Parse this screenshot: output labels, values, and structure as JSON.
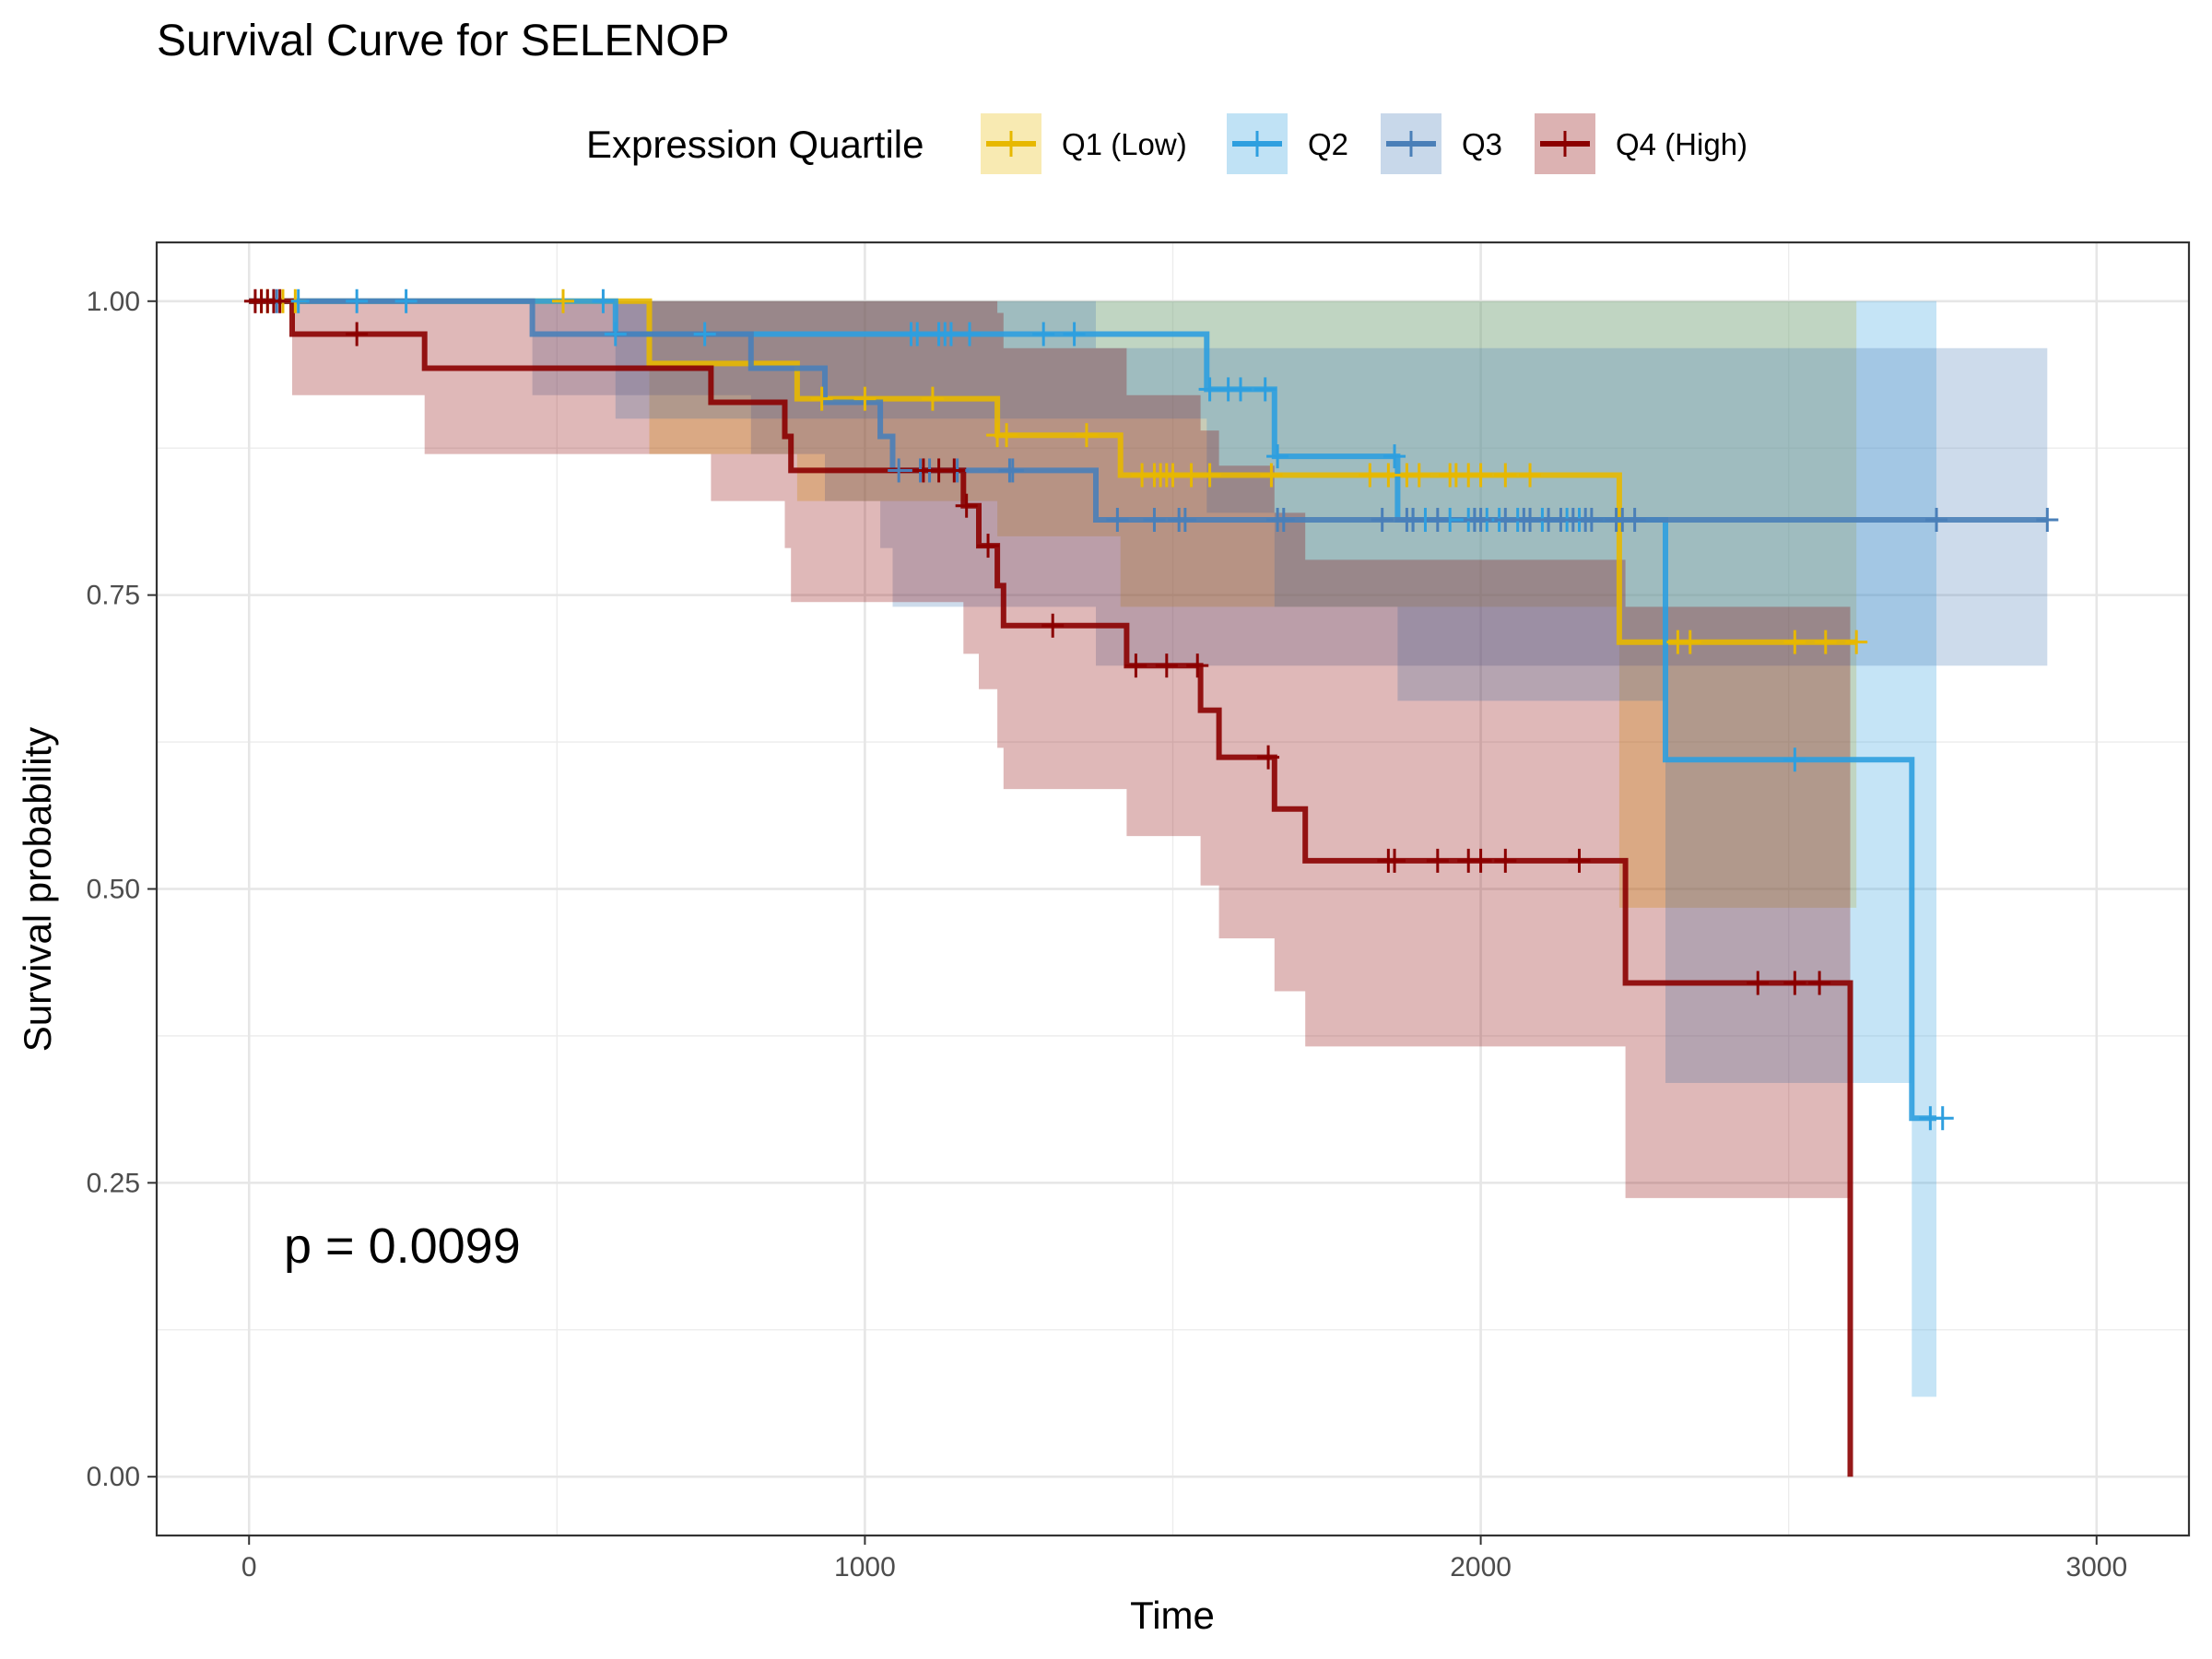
{
  "chart_data": {
    "type": "line",
    "subtype": "kaplan-meier survival",
    "title": "Survival Curve for SELENOP",
    "xlabel": "Time",
    "ylabel": "Survival probability",
    "xlim": [
      -150,
      3150
    ],
    "ylim": [
      -0.05,
      1.05
    ],
    "x_ticks": [
      0,
      1000,
      2000,
      3000
    ],
    "y_ticks": [
      0,
      0.25,
      0.5,
      0.75,
      1.0
    ],
    "x_tick_labels": [
      "0",
      "1000",
      "2000",
      "3000"
    ],
    "y_tick_labels": [
      "0.00",
      "0.25",
      "0.50",
      "0.75",
      "1.00"
    ],
    "grid": true,
    "legend": {
      "title": "Expression Quartile",
      "position": "top"
    },
    "annotation": "p = 0.0099",
    "series": [
      {
        "name": "Q1 (Low)",
        "color": "#E7B800",
        "steps": [
          [
            0,
            1.0
          ],
          [
            650,
            0.947
          ],
          [
            890,
            0.917
          ],
          [
            1215,
            0.886
          ],
          [
            1415,
            0.852
          ],
          [
            2225,
            0.71
          ]
        ],
        "end_time": 2610,
        "ci": [
          [
            0,
            1.0,
            1.0
          ],
          [
            650,
            1.0,
            0.87
          ],
          [
            890,
            1.0,
            0.83
          ],
          [
            1215,
            1.0,
            0.8
          ],
          [
            1415,
            1.0,
            0.74
          ],
          [
            2225,
            1.0,
            0.484
          ]
        ],
        "censors": [
          20,
          30,
          55,
          75,
          510,
          930,
          1000,
          1110,
          1215,
          1230,
          1360,
          1450,
          1470,
          1480,
          1490,
          1500,
          1530,
          1560,
          1660,
          1820,
          1850,
          1880,
          1900,
          1950,
          1960,
          1980,
          2000,
          2040,
          2080,
          2320,
          2340,
          2510,
          2560,
          2610
        ]
      },
      {
        "name": "Q2",
        "color": "#2E9FDF",
        "steps": [
          [
            0,
            1.0
          ],
          [
            595,
            0.972
          ],
          [
            1555,
            0.925
          ],
          [
            1665,
            0.868
          ],
          [
            1865,
            0.814
          ],
          [
            2300,
            0.61
          ],
          [
            2700,
            0.305
          ]
        ],
        "end_time": 2740,
        "ci": [
          [
            0,
            1.0,
            1.0
          ],
          [
            595,
            1.0,
            0.9
          ],
          [
            1555,
            1.0,
            0.82
          ],
          [
            1665,
            1.0,
            0.74
          ],
          [
            1865,
            1.0,
            0.66
          ],
          [
            2300,
            1.0,
            0.335
          ],
          [
            2700,
            1.0,
            0.068
          ]
        ],
        "censors": [
          40,
          80,
          175,
          255,
          575,
          595,
          740,
          1075,
          1085,
          1120,
          1130,
          1140,
          1170,
          1290,
          1340,
          1560,
          1590,
          1610,
          1650,
          1670,
          1860,
          1890,
          1910,
          1950,
          1980,
          1990,
          2010,
          2030,
          2060,
          2100,
          2140,
          2160,
          2510,
          2730,
          2750
        ]
      },
      {
        "name": "Q3",
        "color": "#4A7FB8",
        "steps": [
          [
            0,
            1.0
          ],
          [
            460,
            0.972
          ],
          [
            815,
            0.943
          ],
          [
            935,
            0.914
          ],
          [
            1025,
            0.885
          ],
          [
            1045,
            0.856
          ],
          [
            1375,
            0.814
          ]
        ],
        "end_time": 2920,
        "ci": [
          [
            0,
            1.0,
            1.0
          ],
          [
            460,
            1.0,
            0.92
          ],
          [
            815,
            1.0,
            0.87
          ],
          [
            935,
            1.0,
            0.83
          ],
          [
            1025,
            1.0,
            0.79
          ],
          [
            1045,
            1.0,
            0.74
          ],
          [
            1375,
            0.96,
            0.69
          ]
        ],
        "censors": [
          45,
          1055,
          1090,
          1105,
          1150,
          1235,
          1240,
          1410,
          1470,
          1510,
          1520,
          1670,
          1680,
          1840,
          1880,
          1890,
          1930,
          1990,
          2000,
          2040,
          2070,
          2080,
          2110,
          2130,
          2150,
          2170,
          2180,
          2220,
          2230,
          2250,
          2740,
          2920
        ]
      },
      {
        "name": "Q4 (High)",
        "color": "#8B0000",
        "steps": [
          [
            0,
            1.0
          ],
          [
            70,
            0.972
          ],
          [
            285,
            0.943
          ],
          [
            750,
            0.914
          ],
          [
            870,
            0.885
          ],
          [
            880,
            0.856
          ],
          [
            1160,
            0.826
          ],
          [
            1185,
            0.792
          ],
          [
            1215,
            0.758
          ],
          [
            1225,
            0.724
          ],
          [
            1425,
            0.69
          ],
          [
            1545,
            0.652
          ],
          [
            1575,
            0.612
          ],
          [
            1665,
            0.568
          ],
          [
            1715,
            0.524
          ],
          [
            2235,
            0.42
          ],
          [
            2600,
            0.0
          ]
        ],
        "end_time": 2600,
        "ci": [
          [
            0,
            1.0,
            1.0
          ],
          [
            70,
            1.0,
            0.92
          ],
          [
            285,
            1.0,
            0.87
          ],
          [
            750,
            1.0,
            0.83
          ],
          [
            870,
            1.0,
            0.79
          ],
          [
            880,
            1.0,
            0.744
          ],
          [
            1160,
            1.0,
            0.7
          ],
          [
            1185,
            1.0,
            0.67
          ],
          [
            1215,
            0.99,
            0.62
          ],
          [
            1225,
            0.96,
            0.585
          ],
          [
            1425,
            0.92,
            0.545
          ],
          [
            1545,
            0.89,
            0.503
          ],
          [
            1575,
            0.86,
            0.458
          ],
          [
            1665,
            0.82,
            0.413
          ],
          [
            1715,
            0.78,
            0.366
          ],
          [
            2235,
            0.74,
            0.237
          ]
        ],
        "censors": [
          10,
          20,
          30,
          40,
          50,
          175,
          1095,
          1120,
          1145,
          1165,
          1200,
          1305,
          1440,
          1490,
          1540,
          1655,
          1850,
          1860,
          1930,
          1980,
          2000,
          2040,
          2160,
          2450,
          2510,
          2550
        ]
      }
    ]
  }
}
